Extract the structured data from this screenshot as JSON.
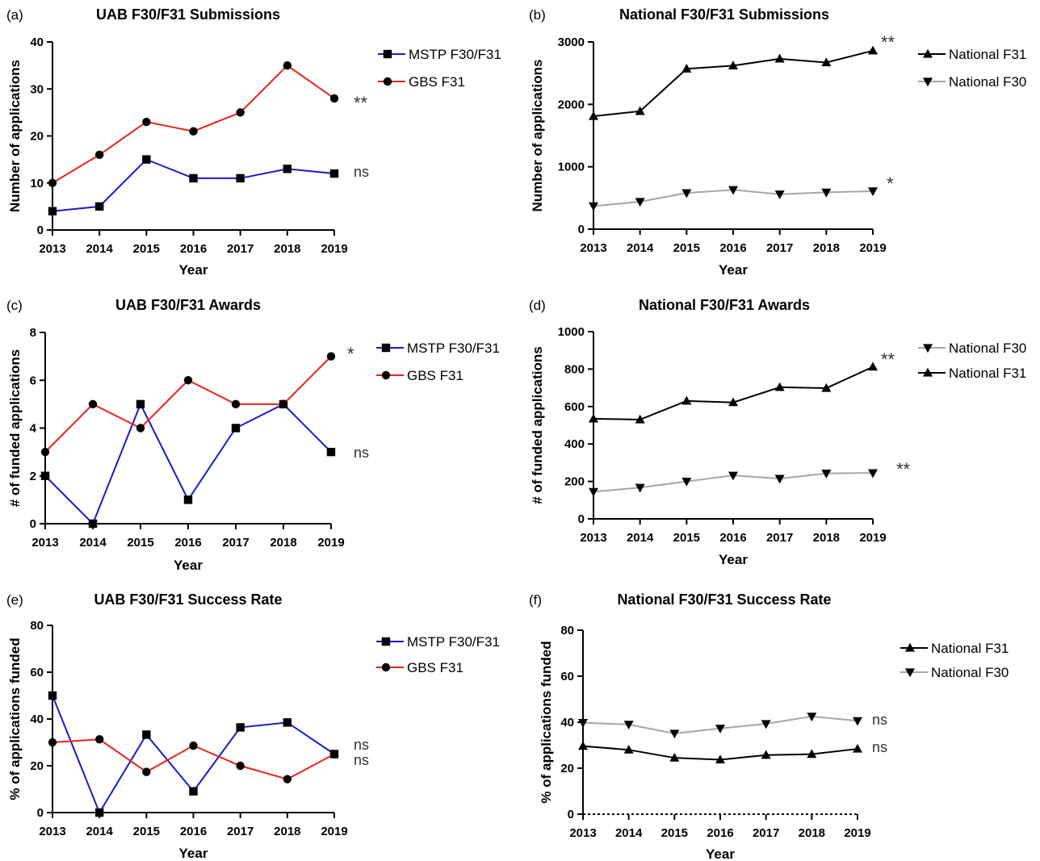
{
  "chart_data": [
    {
      "type": "line",
      "panel_label": "(a)",
      "title": "UAB F30/F31 Submissions",
      "xlabel": "Year",
      "ylabel": "Number of applications",
      "x": [
        2013,
        2014,
        2015,
        2016,
        2017,
        2018,
        2019
      ],
      "ylim": [
        0,
        40
      ],
      "yticks": [
        0,
        10,
        20,
        30,
        40
      ],
      "legend_position": "right",
      "series": [
        {
          "name": "MSTP F30/F31",
          "color": "#1a1acc",
          "marker": "square",
          "values": [
            4,
            5,
            15,
            11,
            11,
            13,
            12
          ],
          "significance": "ns"
        },
        {
          "name": "GBS F31",
          "color": "#e8231e",
          "marker": "circle",
          "values": [
            10,
            16,
            23,
            21,
            25,
            35,
            28
          ],
          "significance": "**"
        }
      ]
    },
    {
      "type": "line",
      "panel_label": "(b)",
      "title": "National F30/F31 Submissions",
      "xlabel": "Year",
      "ylabel": "Number of applications",
      "x": [
        2013,
        2014,
        2015,
        2016,
        2017,
        2018,
        2019
      ],
      "ylim": [
        0,
        3000
      ],
      "yticks": [
        0,
        1000,
        2000,
        3000
      ],
      "legend_position": "right",
      "series": [
        {
          "name": "National F31",
          "color": "#000000",
          "marker": "triangle-up",
          "values": [
            1810,
            1890,
            2570,
            2620,
            2730,
            2670,
            2860
          ],
          "significance": "**"
        },
        {
          "name": "National F30",
          "color": "#a6a6a6",
          "marker": "triangle-down",
          "values": [
            370,
            440,
            580,
            630,
            560,
            590,
            610
          ],
          "significance": "*"
        }
      ]
    },
    {
      "type": "line",
      "panel_label": "(c)",
      "title": "UAB F30/F31 Awards",
      "xlabel": "Year",
      "ylabel": "# of funded applications",
      "x": [
        2013,
        2014,
        2015,
        2016,
        2017,
        2018,
        2019
      ],
      "ylim": [
        0,
        8
      ],
      "yticks": [
        0,
        2,
        4,
        6,
        8
      ],
      "legend_position": "right",
      "series": [
        {
          "name": "MSTP F30/F31",
          "color": "#1a1acc",
          "marker": "square",
          "values": [
            2,
            0,
            5,
            1,
            4,
            5,
            3
          ],
          "significance": "ns"
        },
        {
          "name": "GBS F31",
          "color": "#e8231e",
          "marker": "circle",
          "values": [
            3,
            5,
            4,
            6,
            5,
            5,
            7
          ],
          "significance": "*"
        }
      ]
    },
    {
      "type": "line",
      "panel_label": "(d)",
      "title": "National F30/F31 Awards",
      "xlabel": "Year",
      "ylabel": "# of funded applications",
      "x": [
        2013,
        2014,
        2015,
        2016,
        2017,
        2018,
        2019
      ],
      "ylim": [
        0,
        1000
      ],
      "yticks": [
        0,
        200,
        400,
        600,
        800,
        1000
      ],
      "legend_position": "right",
      "series": [
        {
          "name": "National F30",
          "color": "#a6a6a6",
          "marker": "triangle-down",
          "values": [
            145,
            167,
            200,
            232,
            215,
            243,
            245
          ],
          "significance": "**"
        },
        {
          "name": "National F31",
          "color": "#000000",
          "marker": "triangle-up",
          "values": [
            535,
            530,
            630,
            622,
            703,
            698,
            812
          ],
          "significance": "**"
        }
      ]
    },
    {
      "type": "line",
      "panel_label": "(e)",
      "title": "UAB F30/F31 Success Rate",
      "xlabel": "Year",
      "ylabel": "% of applications funded",
      "x": [
        2013,
        2014,
        2015,
        2016,
        2017,
        2018,
        2019
      ],
      "ylim": [
        0,
        80
      ],
      "yticks": [
        0,
        20,
        40,
        60,
        80
      ],
      "legend_position": "right",
      "series": [
        {
          "name": "MSTP F30/F31",
          "color": "#1a1acc",
          "marker": "square",
          "values": [
            50,
            0,
            33.3,
            9.1,
            36.4,
            38.5,
            25
          ],
          "significance": "ns"
        },
        {
          "name": "GBS F31",
          "color": "#e8231e",
          "marker": "circle",
          "values": [
            30,
            31.3,
            17.4,
            28.6,
            20,
            14.3,
            25
          ],
          "significance": "ns"
        }
      ]
    },
    {
      "type": "line",
      "panel_label": "(f)",
      "title": "National F30/F31 Success Rate",
      "xlabel": "Year",
      "ylabel": "% of applications funded",
      "x": [
        2013,
        2014,
        2015,
        2016,
        2017,
        2018,
        2019
      ],
      "ylim": [
        0,
        80
      ],
      "yticks": [
        0,
        20,
        40,
        60,
        80
      ],
      "legend_position": "right",
      "series": [
        {
          "name": "National F31",
          "color": "#000000",
          "marker": "triangle-up",
          "values": [
            29.6,
            28.0,
            24.5,
            23.7,
            25.7,
            26.1,
            28.4
          ],
          "significance": "ns"
        },
        {
          "name": "National F30",
          "color": "#a6a6a6",
          "marker": "triangle-down",
          "values": [
            39.8,
            39.0,
            35.1,
            37.3,
            39.3,
            42.5,
            40.6
          ],
          "significance": "ns"
        }
      ]
    }
  ]
}
